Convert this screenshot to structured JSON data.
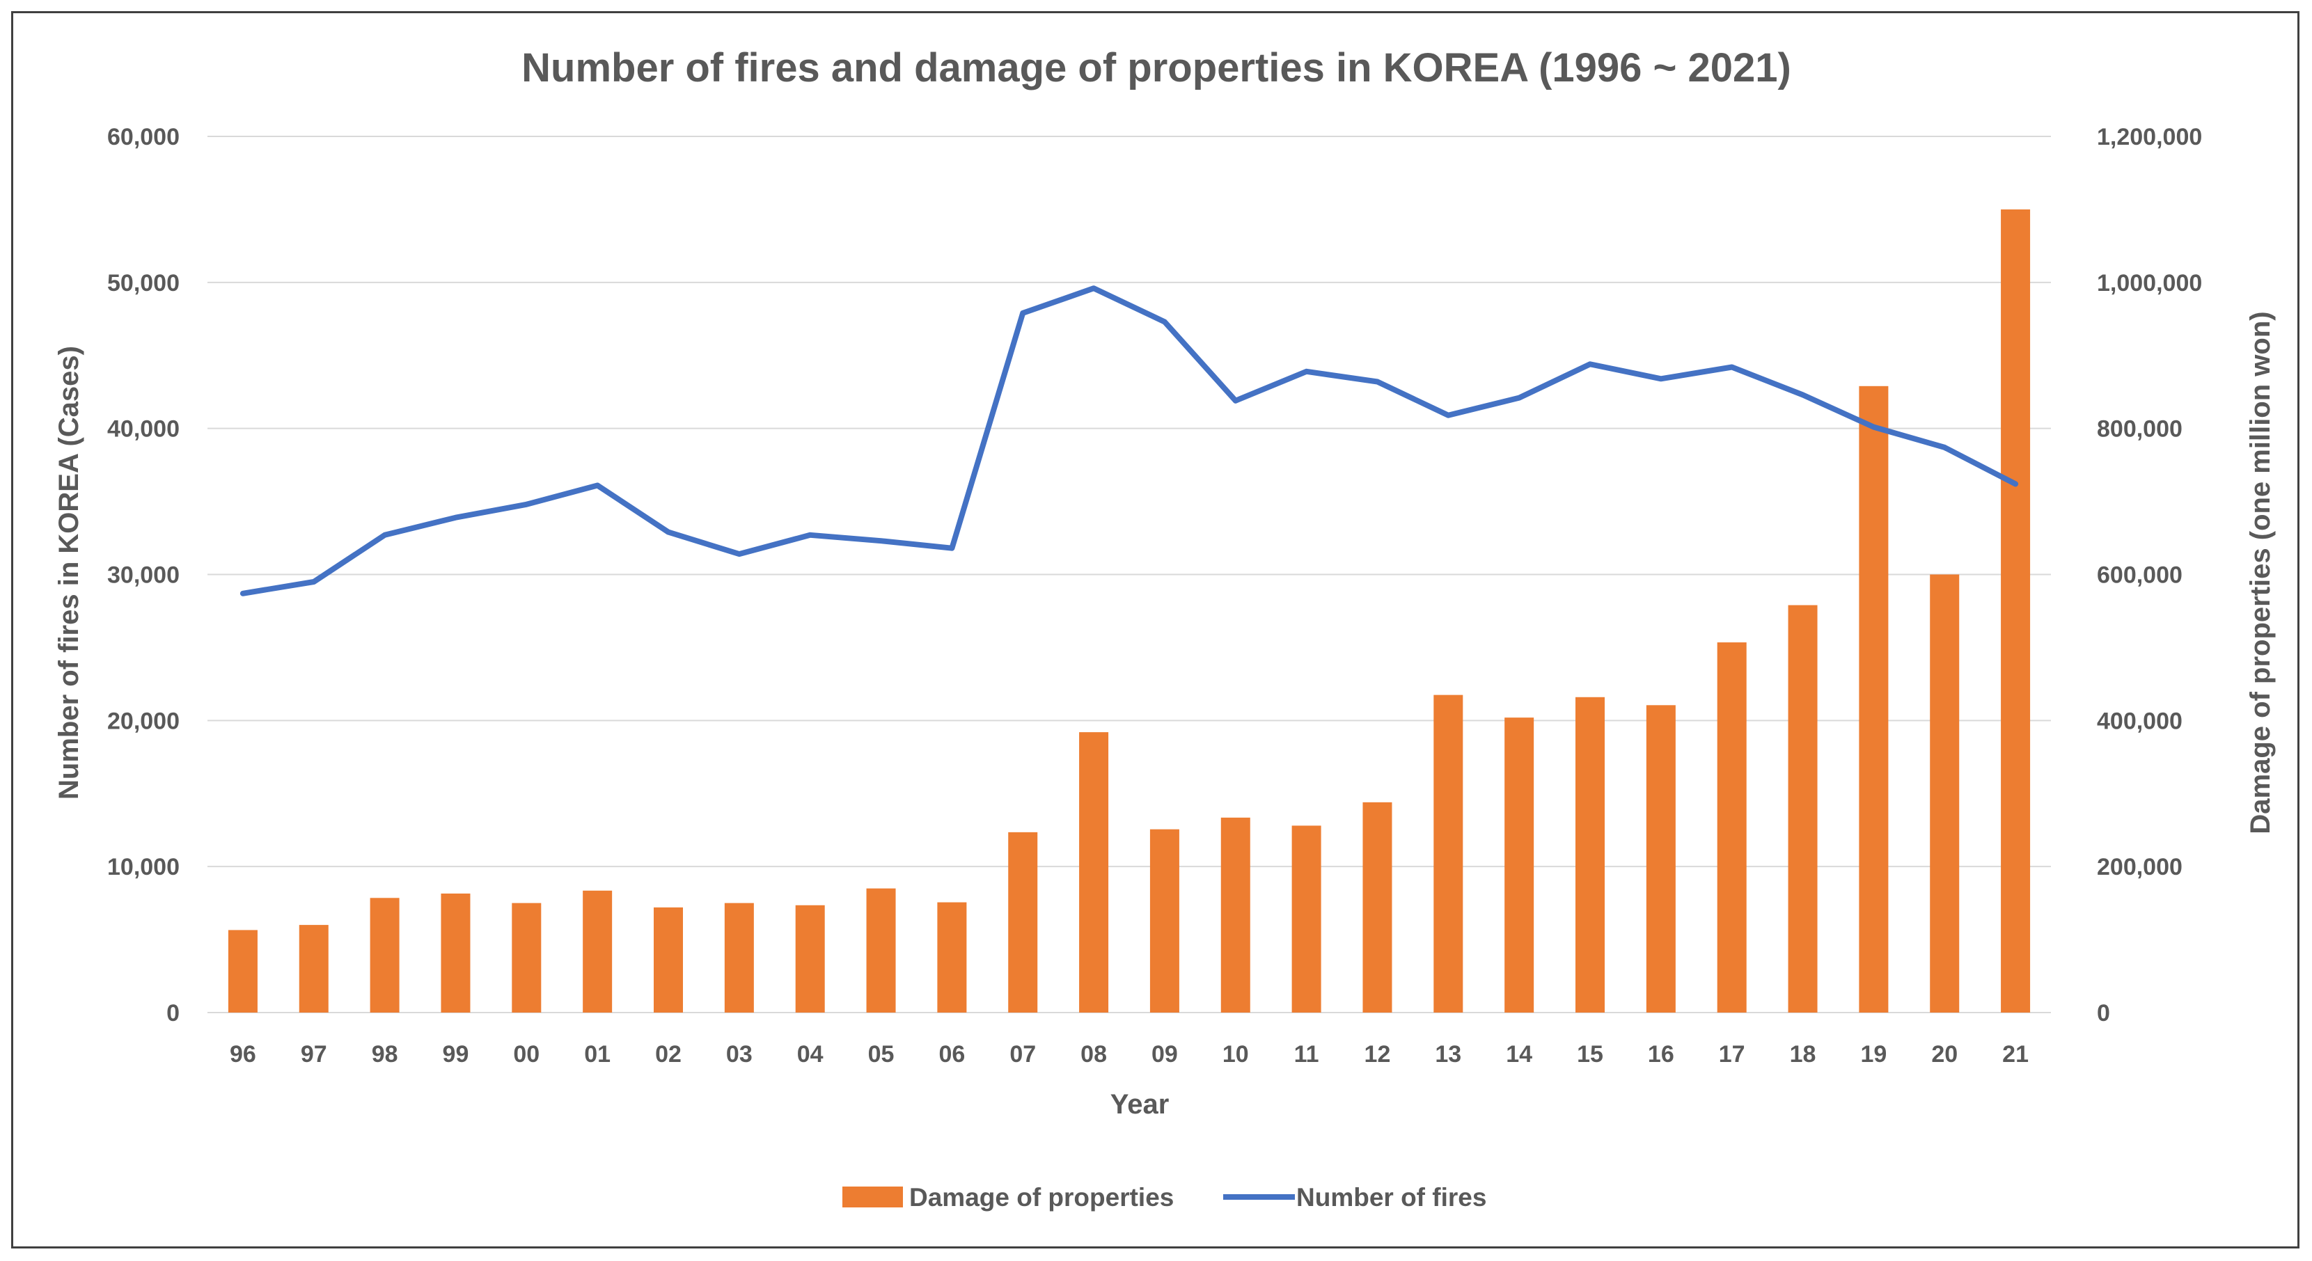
{
  "chart_data": {
    "type": "bar",
    "title": "Number of fires and damage of properties in KOREA (1996 ~ 2021)",
    "xlabel": "Year",
    "ylabel_left": "Number of fires in KOREA (Cases)",
    "ylabel_right": "Damage of properties (one million won)",
    "categories": [
      "96",
      "97",
      "98",
      "99",
      "00",
      "01",
      "02",
      "03",
      "04",
      "05",
      "06",
      "07",
      "08",
      "09",
      "10",
      "11",
      "12",
      "13",
      "14",
      "15",
      "16",
      "17",
      "18",
      "19",
      "20",
      "21"
    ],
    "ylim_left": [
      0,
      60000
    ],
    "ylim_right": [
      0,
      1200000
    ],
    "yticks_left": [
      "0",
      "10,000",
      "20,000",
      "30,000",
      "40,000",
      "50,000",
      "60,000"
    ],
    "yticks_right": [
      "0",
      "200,000",
      "400,000",
      "600,000",
      "800,000",
      "1,000,000",
      "1,200,000"
    ],
    "grid": true,
    "legend_position": "bottom",
    "series": [
      {
        "name": "Damage of properties",
        "type": "bar",
        "axis": "right",
        "color": "#ed7d31",
        "values": [
          113000,
          120000,
          157000,
          163000,
          150000,
          167000,
          144000,
          150000,
          147000,
          170000,
          151000,
          247000,
          384000,
          251000,
          267000,
          256000,
          288000,
          435000,
          404000,
          432000,
          421000,
          507000,
          558000,
          858000,
          600000,
          1100000
        ]
      },
      {
        "name": "Number of fires",
        "type": "line",
        "axis": "left",
        "color": "#4472c4",
        "values": [
          28700,
          29500,
          32700,
          33900,
          34800,
          36100,
          32900,
          31400,
          32700,
          32300,
          31800,
          47900,
          49600,
          47300,
          41900,
          43900,
          43200,
          40900,
          42100,
          44400,
          43400,
          44200,
          42300,
          40100,
          38700,
          36200
        ]
      }
    ]
  }
}
